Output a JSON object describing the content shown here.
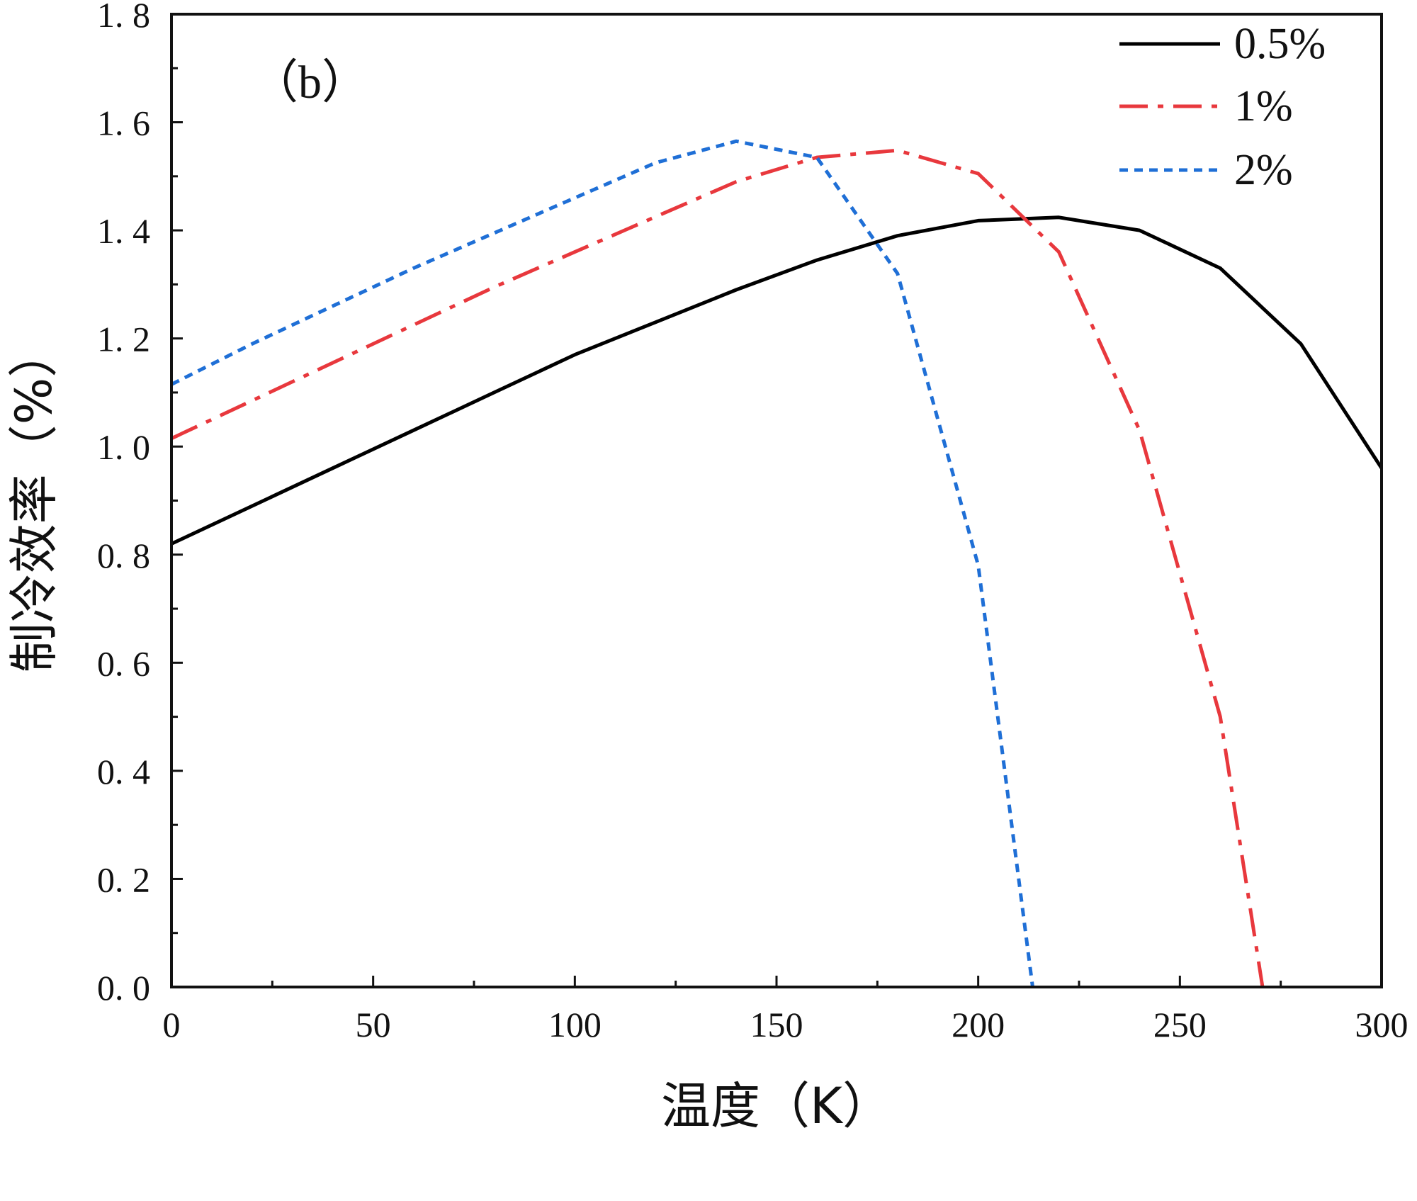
{
  "chart_data": {
    "type": "line",
    "panel_label": "（b）",
    "xlabel": "温度（K）",
    "ylabel": "制冷效率（%）",
    "xlim": [
      0,
      300
    ],
    "ylim": [
      0,
      1.8
    ],
    "x_ticks": [
      0,
      50,
      100,
      150,
      200,
      250,
      300
    ],
    "y_ticks": [
      0.0,
      0.2,
      0.4,
      0.6,
      0.8,
      1.0,
      1.2,
      1.4,
      1.6,
      1.8
    ],
    "y_tick_labels": [
      "0. 0",
      "0. 2",
      "0. 4",
      "0. 6",
      "0. 8",
      "1. 0",
      "1. 2",
      "1. 4",
      "1. 6",
      "1. 8"
    ],
    "grid": false,
    "legend_position": "top-right",
    "series": [
      {
        "name": "0.5%",
        "color": "#000000",
        "style": "solid",
        "x": [
          0,
          20,
          40,
          60,
          80,
          100,
          120,
          140,
          160,
          180,
          200,
          220,
          240,
          260,
          280,
          300
        ],
        "y": [
          0.82,
          0.89,
          0.96,
          1.03,
          1.1,
          1.17,
          1.23,
          1.29,
          1.345,
          1.39,
          1.418,
          1.424,
          1.4,
          1.33,
          1.19,
          0.96
        ]
      },
      {
        "name": "1%",
        "color": "#e8383d",
        "style": "dashdot",
        "x": [
          0,
          20,
          40,
          60,
          80,
          100,
          120,
          140,
          160,
          180,
          200,
          220,
          240,
          260,
          270.5
        ],
        "y": [
          1.015,
          1.085,
          1.155,
          1.225,
          1.295,
          1.36,
          1.425,
          1.49,
          1.535,
          1.548,
          1.505,
          1.36,
          1.03,
          0.5,
          0.0
        ]
      },
      {
        "name": "2%",
        "color": "#1f6fd6",
        "style": "dotted",
        "x": [
          0,
          20,
          40,
          60,
          80,
          100,
          120,
          140,
          160,
          180,
          200,
          213.5
        ],
        "y": [
          1.115,
          1.19,
          1.26,
          1.33,
          1.395,
          1.46,
          1.525,
          1.565,
          1.535,
          1.32,
          0.78,
          0.0
        ]
      }
    ]
  }
}
